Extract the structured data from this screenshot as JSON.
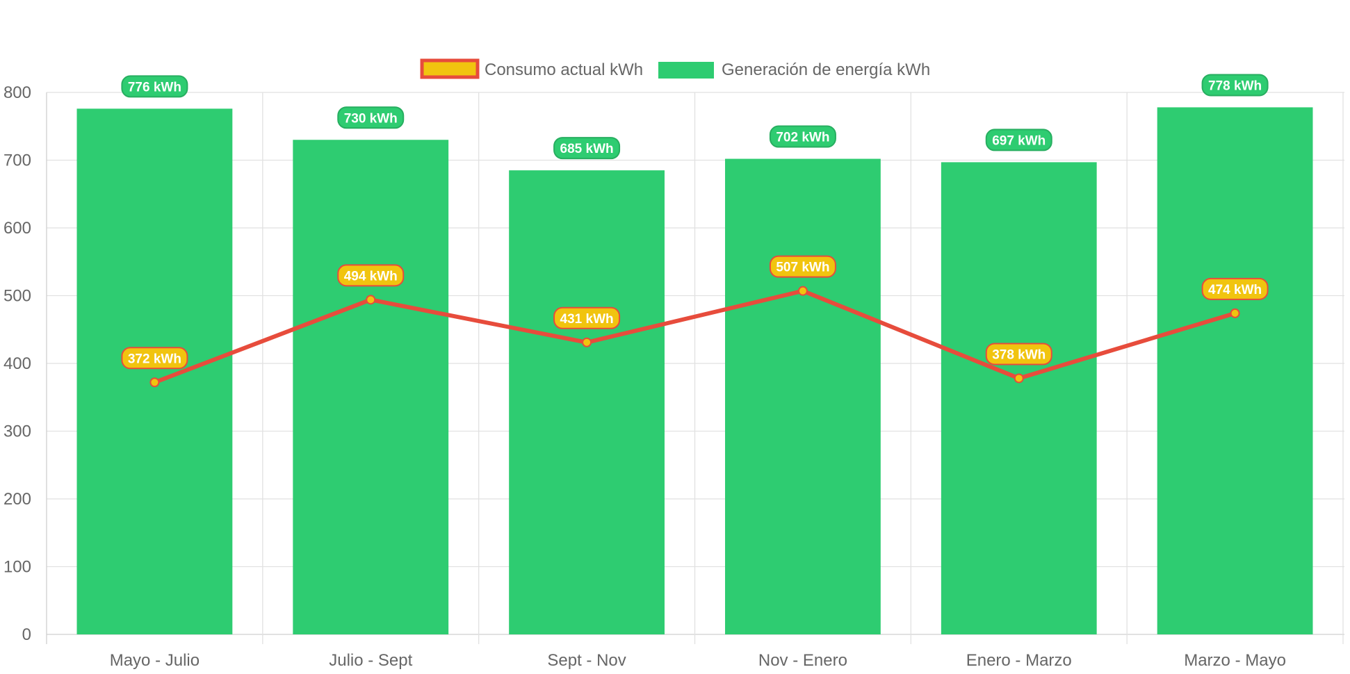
{
  "colors": {
    "generation_fill": "#2ecc71",
    "generation_label_stroke": "#27ae60",
    "consumption_line": "#e74c3c",
    "consumption_point": "#f1c40f",
    "grid": "#e1e1e1",
    "axis_text": "#666666"
  },
  "chart_data": {
    "type": "bar",
    "title": "",
    "xlabel": "",
    "ylabel": "",
    "categories": [
      "Mayo - Julio",
      "Julio - Sept",
      "Sept - Nov",
      "Nov - Enero",
      "Enero - Marzo",
      "Marzo - Mayo"
    ],
    "ylim": [
      0,
      800
    ],
    "yticks": [
      0,
      100,
      200,
      300,
      400,
      500,
      600,
      700,
      800
    ],
    "grid": true,
    "legend_position": "top-center",
    "value_suffix": " kWh",
    "series": [
      {
        "name": "Consumo actual kWh",
        "type": "line",
        "values": [
          372,
          494,
          431,
          507,
          378,
          474
        ]
      },
      {
        "name": "Generación de energía kWh",
        "type": "bar",
        "values": [
          776,
          730,
          685,
          702,
          697,
          778
        ]
      }
    ]
  }
}
